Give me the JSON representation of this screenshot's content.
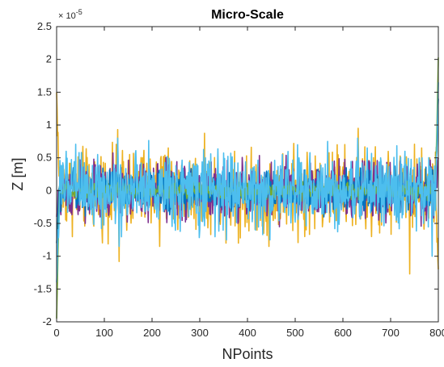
{
  "chart_data": {
    "type": "line",
    "title": "Micro-Scale",
    "xlabel": "NPoints",
    "ylabel": "Z [m]",
    "y_exponent_label": "× 10",
    "y_exponent_power": "-5",
    "y_exponent": -5,
    "xlim": [
      0,
      800
    ],
    "ylim": [
      -2,
      2.5
    ],
    "x_ticks": [
      0,
      100,
      200,
      300,
      400,
      500,
      600,
      700,
      800
    ],
    "x_tick_labels": [
      "0",
      "100",
      "200",
      "300",
      "400",
      "500",
      "600",
      "700",
      "800"
    ],
    "y_ticks": [
      -2,
      -1.5,
      -1,
      -0.5,
      0,
      0.5,
      1,
      1.5,
      2,
      2.5
    ],
    "y_tick_labels": [
      "-2",
      "-1.5",
      "-1",
      "-0.5",
      "0",
      "0.5",
      "1",
      "1.5",
      "2",
      "2.5"
    ],
    "grid": false,
    "box": true,
    "n_points": 800,
    "series": [
      {
        "color": "#EDB120",
        "amplitude": 0.3,
        "start_value": 1.5,
        "end_value": -1.2,
        "peaks": [
          {
            "x": 128,
            "y": 0.93
          },
          {
            "x": 131,
            "y": -1.08
          },
          {
            "x": 153,
            "y": 0.55
          },
          {
            "x": 180,
            "y": 0.5
          },
          {
            "x": 216,
            "y": -0.85
          },
          {
            "x": 234,
            "y": 0.65
          },
          {
            "x": 373,
            "y": 0.6
          },
          {
            "x": 395,
            "y": -0.55
          },
          {
            "x": 445,
            "y": -0.85
          },
          {
            "x": 497,
            "y": 0.72
          },
          {
            "x": 520,
            "y": -0.7
          },
          {
            "x": 588,
            "y": 0.7
          },
          {
            "x": 632,
            "y": 0.95
          },
          {
            "x": 660,
            "y": -0.7
          },
          {
            "x": 740,
            "y": -1.27
          },
          {
            "x": 765,
            "y": 0.65
          }
        ]
      },
      {
        "color": "#7E2F8E",
        "amplitude": 0.22,
        "start_value": -0.4,
        "end_value": 0.5,
        "peaks": [
          {
            "x": 60,
            "y": -0.5
          },
          {
            "x": 148,
            "y": -0.48
          },
          {
            "x": 380,
            "y": -0.5
          },
          {
            "x": 467,
            "y": -0.55
          },
          {
            "x": 532,
            "y": 0.42
          },
          {
            "x": 675,
            "y": -0.45
          },
          {
            "x": 720,
            "y": 0.45
          }
        ]
      },
      {
        "color": "#0072BD",
        "amplitude": 0.15,
        "start_value": -0.8,
        "end_value": 1.4,
        "peaks": [
          {
            "x": 35,
            "y": 0.35
          },
          {
            "x": 410,
            "y": 0.25
          },
          {
            "x": 690,
            "y": -0.35
          }
        ]
      },
      {
        "color": "#77AC30",
        "amplitude": 0.06,
        "start_value": -1.95,
        "end_value": 2.03,
        "peaks": []
      },
      {
        "color": "#4DBEEE",
        "amplitude": 0.28,
        "start_value": -1.4,
        "end_value": 1.65,
        "peaks": [
          {
            "x": 20,
            "y": 0.6
          },
          {
            "x": 47,
            "y": 0.58
          },
          {
            "x": 86,
            "y": 0.55
          },
          {
            "x": 128,
            "y": 0.8
          },
          {
            "x": 131,
            "y": -0.85
          },
          {
            "x": 232,
            "y": 0.52
          },
          {
            "x": 312,
            "y": 0.5
          },
          {
            "x": 447,
            "y": -0.75
          },
          {
            "x": 473,
            "y": 0.55
          },
          {
            "x": 505,
            "y": 0.7
          },
          {
            "x": 568,
            "y": 0.75
          },
          {
            "x": 583,
            "y": -0.58
          },
          {
            "x": 631,
            "y": 0.8
          },
          {
            "x": 651,
            "y": 0.65
          },
          {
            "x": 679,
            "y": 0.5
          },
          {
            "x": 730,
            "y": 0.6
          },
          {
            "x": 769,
            "y": -0.5
          },
          {
            "x": 787,
            "y": -1.0
          }
        ]
      }
    ]
  }
}
